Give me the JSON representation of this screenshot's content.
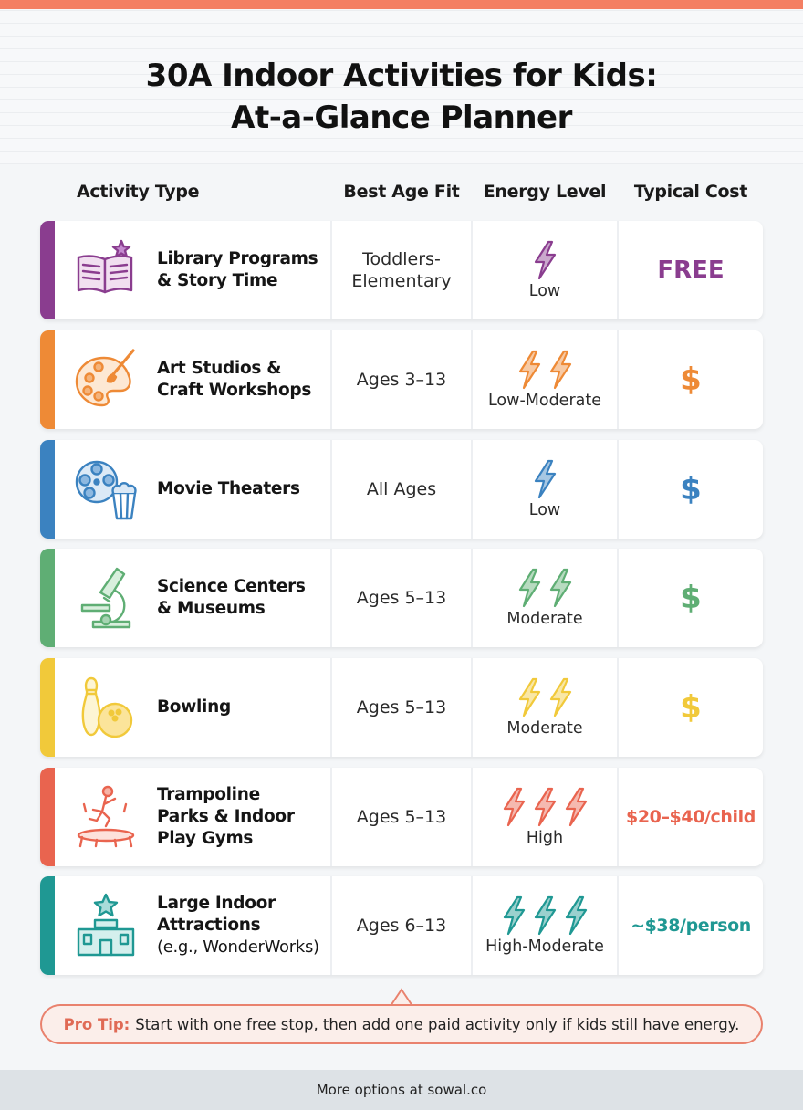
{
  "title_line1": "30A Indoor Activities for Kids:",
  "title_line2": "At-a-Glance Planner",
  "columns": {
    "activity": "Activity Type",
    "age": "Best Age Fit",
    "energy": "Energy Level",
    "cost": "Typical Cost"
  },
  "rows": [
    {
      "name_line1": "Library Programs",
      "name_line2": "& Story Time",
      "name_line3": "",
      "sub": "",
      "age": "Toddlers-\nElementary",
      "energy_label": "Low",
      "bolts": 1,
      "cost": "FREE",
      "color": "#8a3d8f",
      "icon": "open-book-star-icon"
    },
    {
      "name_line1": "Art Studios &",
      "name_line2": "Craft Workshops",
      "name_line3": "",
      "sub": "",
      "age": "Ages 3–13",
      "energy_label": "Low-Moderate",
      "bolts": 2,
      "cost": "$",
      "color": "#ee8a36",
      "icon": "paint-palette-icon"
    },
    {
      "name_line1": "Movie Theaters",
      "name_line2": "",
      "name_line3": "",
      "sub": "",
      "age": "All Ages",
      "energy_label": "Low",
      "bolts": 1,
      "cost": "$",
      "color": "#3b82c0",
      "icon": "film-reel-popcorn-icon"
    },
    {
      "name_line1": "Science Centers",
      "name_line2": "& Museums",
      "name_line3": "",
      "sub": "",
      "age": "Ages 5–13",
      "energy_label": "Moderate",
      "bolts": 2,
      "cost": "$",
      "color": "#5fae74",
      "icon": "microscope-icon"
    },
    {
      "name_line1": "Bowling",
      "name_line2": "",
      "name_line3": "",
      "sub": "",
      "age": "Ages 5–13",
      "energy_label": "Moderate",
      "bolts": 2,
      "cost": "$",
      "color": "#f1c93a",
      "icon": "bowling-pin-ball-icon"
    },
    {
      "name_line1": "Trampoline",
      "name_line2": "Parks & Indoor",
      "name_line3": "Play Gyms",
      "sub": "",
      "age": "Ages 5–13",
      "energy_label": "High",
      "bolts": 3,
      "cost": "$20–$40/child",
      "color": "#e9644f",
      "icon": "trampoline-jumper-icon"
    },
    {
      "name_line1": "Large Indoor",
      "name_line2": "Attractions",
      "name_line3": "",
      "sub": "(e.g., WonderWorks)",
      "age": "Ages 6–13",
      "energy_label": "High-Moderate",
      "bolts": 3,
      "cost": "~$38/person",
      "color": "#1f9893",
      "icon": "attraction-building-star-icon"
    }
  ],
  "tip_label": "Pro Tip:",
  "tip_text": "Start with one free stop, then add one paid activity only if kids still have energy.",
  "footer": "More options at sowal.co"
}
